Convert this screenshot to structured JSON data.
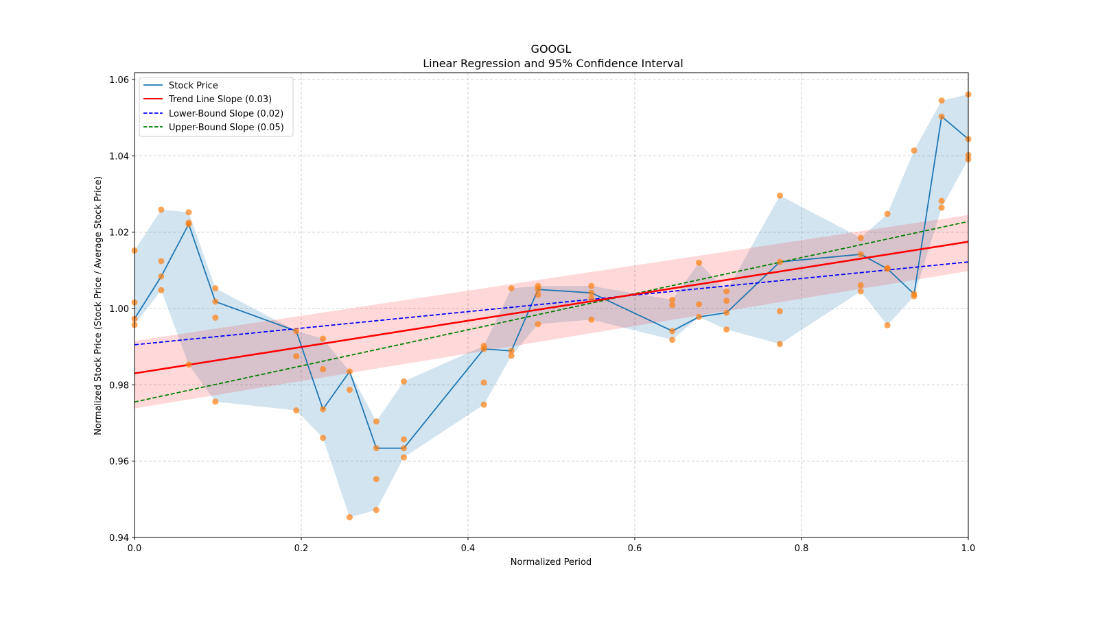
{
  "chart_data": {
    "type": "line",
    "title": "GOOGL",
    "subtitle": "Linear Regression and 95% Confidence Interval",
    "xlabel": "Normalized Period",
    "ylabel": "Normalized Stock Price (Stock Price / Average Stock Price)",
    "xlim": [
      0.0,
      1.0
    ],
    "ylim": [
      0.94,
      1.06
    ],
    "xticks": [
      0.0,
      0.2,
      0.4,
      0.6,
      0.8,
      1.0
    ],
    "xtick_labels": [
      "0.0",
      "0.2",
      "0.4",
      "0.6",
      "0.8",
      "1.0"
    ],
    "yticks": [
      0.94,
      0.96,
      0.98,
      1.0,
      1.02,
      1.04,
      1.06
    ],
    "ytick_labels": [
      "0.94",
      "0.96",
      "0.98",
      "1.00",
      "1.02",
      "1.04",
      "1.06"
    ],
    "grid": true,
    "legend_position": "top-left",
    "legend": [
      {
        "label": "Stock Price",
        "color": "#1f77b4",
        "style": "solid"
      },
      {
        "label": "Trend Line Slope (0.03)",
        "color": "#ff0000",
        "style": "solid"
      },
      {
        "label": "Lower-Bound Slope (0.02)",
        "color": "#0000ff",
        "style": "dashed"
      },
      {
        "label": "Upper-Bound Slope (0.05)",
        "color": "#008000",
        "style": "dashed"
      }
    ],
    "stock_price": {
      "name": "Stock Price",
      "color": "#1f77b4",
      "x": [
        0.0,
        0.032,
        0.065,
        0.097,
        0.194,
        0.226,
        0.258,
        0.29,
        0.323,
        0.419,
        0.452,
        0.484,
        0.548,
        0.645,
        0.677,
        0.71,
        0.774,
        0.871,
        0.903,
        0.935,
        0.968,
        1.0
      ],
      "y": [
        0.9973,
        1.0084,
        1.0221,
        1.0018,
        0.9941,
        0.9736,
        0.9835,
        0.9634,
        0.9634,
        0.9894,
        0.9889,
        1.005,
        1.0041,
        0.9941,
        0.9978,
        0.9989,
        1.0122,
        1.0142,
        1.0104,
        1.0038,
        1.0503,
        1.0444
      ]
    },
    "price_range_band": {
      "color": "#1f77b4",
      "opacity": 0.2,
      "upper": [
        1.0152,
        1.0259,
        1.0252,
        1.0053,
        0.9941,
        0.9921,
        0.9835,
        0.9704,
        0.9809,
        0.9902,
        1.0053,
        1.0059,
        1.0059,
        1.0023,
        1.012,
        1.0045,
        1.0296,
        1.0185,
        1.0248,
        1.0414,
        1.0545,
        1.0561
      ],
      "lower": [
        0.9957,
        1.0048,
        0.9853,
        0.9756,
        0.9733,
        0.9661,
        0.9453,
        0.9472,
        0.961,
        0.9748,
        0.9876,
        0.9959,
        0.9971,
        0.9918,
        0.9978,
        0.9945,
        0.9907,
        1.0045,
        0.9956,
        1.0032,
        1.0264,
        1.0391
      ]
    },
    "scatter": {
      "color": "#ff7f0e",
      "points": [
        [
          0.0,
          1.0152
        ],
        [
          0.0,
          1.0016
        ],
        [
          0.0,
          0.9973
        ],
        [
          0.0,
          0.9957
        ],
        [
          0.032,
          1.0259
        ],
        [
          0.032,
          1.0124
        ],
        [
          0.032,
          1.0084
        ],
        [
          0.032,
          1.0048
        ],
        [
          0.065,
          1.0252
        ],
        [
          0.065,
          1.0225
        ],
        [
          0.065,
          1.0221
        ],
        [
          0.065,
          0.9853
        ],
        [
          0.097,
          1.0053
        ],
        [
          0.097,
          1.0018
        ],
        [
          0.097,
          0.9976
        ],
        [
          0.097,
          0.9756
        ],
        [
          0.194,
          0.9941
        ],
        [
          0.194,
          0.9875
        ],
        [
          0.194,
          0.9733
        ],
        [
          0.226,
          0.9921
        ],
        [
          0.226,
          0.9841
        ],
        [
          0.226,
          0.9736
        ],
        [
          0.226,
          0.9661
        ],
        [
          0.258,
          0.9835
        ],
        [
          0.258,
          0.9787
        ],
        [
          0.258,
          0.9453
        ],
        [
          0.29,
          0.9704
        ],
        [
          0.29,
          0.9634
        ],
        [
          0.29,
          0.9553
        ],
        [
          0.29,
          0.9472
        ],
        [
          0.323,
          0.9809
        ],
        [
          0.323,
          0.9657
        ],
        [
          0.323,
          0.9634
        ],
        [
          0.323,
          0.961
        ],
        [
          0.419,
          0.9902
        ],
        [
          0.419,
          0.9894
        ],
        [
          0.419,
          0.9806
        ],
        [
          0.419,
          0.9748
        ],
        [
          0.452,
          1.0053
        ],
        [
          0.452,
          0.9889
        ],
        [
          0.452,
          0.9876
        ],
        [
          0.484,
          1.0059
        ],
        [
          0.484,
          1.005
        ],
        [
          0.484,
          1.0036
        ],
        [
          0.484,
          0.9959
        ],
        [
          0.548,
          1.0059
        ],
        [
          0.548,
          1.0041
        ],
        [
          0.548,
          1.0027
        ],
        [
          0.548,
          0.9971
        ],
        [
          0.645,
          1.0023
        ],
        [
          0.645,
          1.0009
        ],
        [
          0.645,
          0.9941
        ],
        [
          0.645,
          0.9918
        ],
        [
          0.677,
          1.012
        ],
        [
          0.677,
          1.0011
        ],
        [
          0.677,
          0.9978
        ],
        [
          0.71,
          1.0045
        ],
        [
          0.71,
          1.002
        ],
        [
          0.71,
          0.9989
        ],
        [
          0.71,
          0.9945
        ],
        [
          0.774,
          1.0296
        ],
        [
          0.774,
          1.0122
        ],
        [
          0.774,
          0.9993
        ],
        [
          0.774,
          0.9907
        ],
        [
          0.871,
          1.0185
        ],
        [
          0.871,
          1.0142
        ],
        [
          0.871,
          1.0061
        ],
        [
          0.871,
          1.0045
        ],
        [
          0.903,
          1.0248
        ],
        [
          0.903,
          1.0106
        ],
        [
          0.903,
          1.0104
        ],
        [
          0.903,
          0.9956
        ],
        [
          0.935,
          1.0414
        ],
        [
          0.935,
          1.0038
        ],
        [
          0.935,
          1.0032
        ],
        [
          0.968,
          1.0545
        ],
        [
          0.968,
          1.0503
        ],
        [
          0.968,
          1.0282
        ],
        [
          0.968,
          1.0264
        ],
        [
          1.0,
          1.0561
        ],
        [
          1.0,
          1.0444
        ],
        [
          1.0,
          1.0402
        ],
        [
          1.0,
          1.0391
        ]
      ]
    },
    "regression_band": {
      "color": "#ff0000",
      "opacity": 0.15,
      "x": [
        0.0,
        1.0
      ],
      "upper": [
        0.9915,
        1.0245
      ],
      "lower": [
        0.9738,
        1.0098
      ]
    },
    "trend_line": {
      "name": "Trend Line Slope (0.03)",
      "color": "#ff0000",
      "x": [
        0.0,
        1.0
      ],
      "y": [
        0.983,
        1.0175
      ],
      "slope": 0.03
    },
    "lower_bound_line": {
      "name": "Lower-Bound Slope (0.02)",
      "color": "#0000ff",
      "x": [
        0.0,
        1.0
      ],
      "y": [
        0.9905,
        1.0122
      ],
      "slope": 0.02
    },
    "upper_bound_line": {
      "name": "Upper-Bound Slope (0.05)",
      "color": "#008000",
      "x": [
        0.0,
        1.0
      ],
      "y": [
        0.9755,
        1.0228
      ],
      "slope": 0.05
    }
  }
}
